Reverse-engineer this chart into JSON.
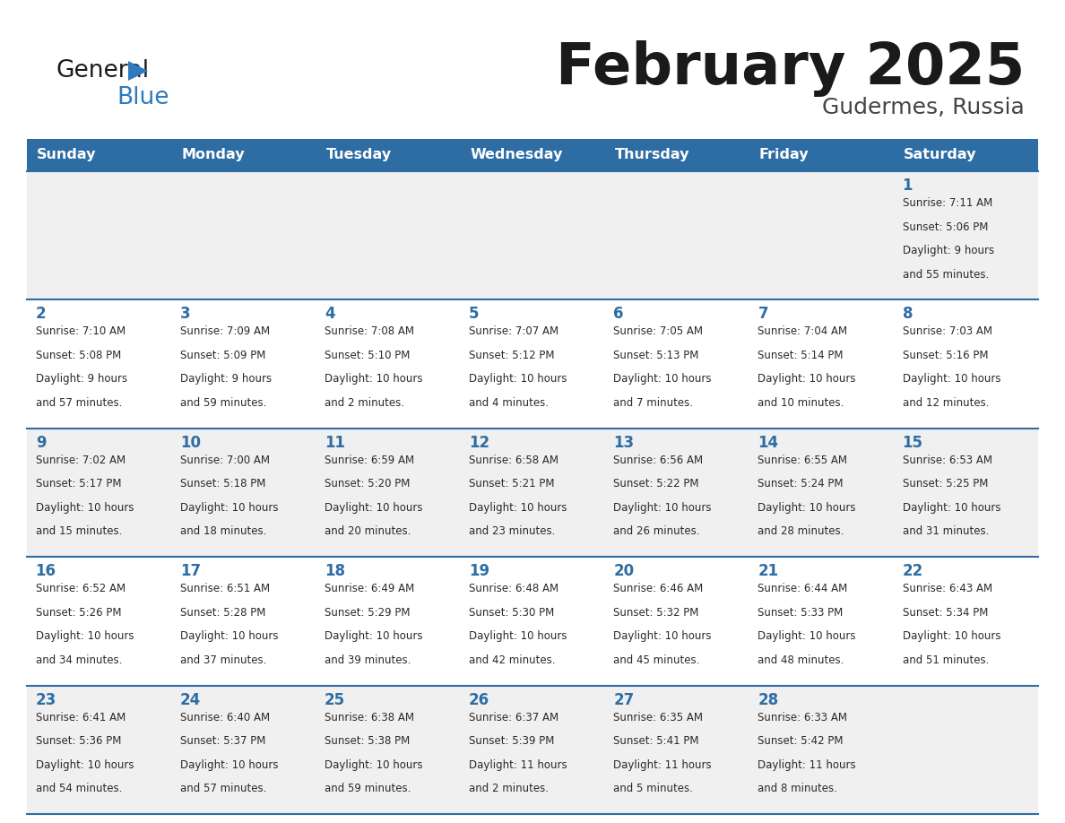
{
  "title": "February 2025",
  "subtitle": "Gudermes, Russia",
  "days_of_week": [
    "Sunday",
    "Monday",
    "Tuesday",
    "Wednesday",
    "Thursday",
    "Friday",
    "Saturday"
  ],
  "header_bg": "#2E6DA4",
  "header_text": "#FFFFFF",
  "cell_bg_odd": "#F0F0F0",
  "cell_bg_even": "#FFFFFF",
  "border_color": "#2E6DA4",
  "day_num_color": "#2E6DA4",
  "text_color": "#333333",
  "calendar": [
    [
      null,
      null,
      null,
      null,
      null,
      null,
      {
        "day": 1,
        "sunrise": "7:11 AM",
        "sunset": "5:06 PM",
        "daylight_line1": "Daylight: 9 hours",
        "daylight_line2": "and 55 minutes."
      }
    ],
    [
      {
        "day": 2,
        "sunrise": "7:10 AM",
        "sunset": "5:08 PM",
        "daylight_line1": "Daylight: 9 hours",
        "daylight_line2": "and 57 minutes."
      },
      {
        "day": 3,
        "sunrise": "7:09 AM",
        "sunset": "5:09 PM",
        "daylight_line1": "Daylight: 9 hours",
        "daylight_line2": "and 59 minutes."
      },
      {
        "day": 4,
        "sunrise": "7:08 AM",
        "sunset": "5:10 PM",
        "daylight_line1": "Daylight: 10 hours",
        "daylight_line2": "and 2 minutes."
      },
      {
        "day": 5,
        "sunrise": "7:07 AM",
        "sunset": "5:12 PM",
        "daylight_line1": "Daylight: 10 hours",
        "daylight_line2": "and 4 minutes."
      },
      {
        "day": 6,
        "sunrise": "7:05 AM",
        "sunset": "5:13 PM",
        "daylight_line1": "Daylight: 10 hours",
        "daylight_line2": "and 7 minutes."
      },
      {
        "day": 7,
        "sunrise": "7:04 AM",
        "sunset": "5:14 PM",
        "daylight_line1": "Daylight: 10 hours",
        "daylight_line2": "and 10 minutes."
      },
      {
        "day": 8,
        "sunrise": "7:03 AM",
        "sunset": "5:16 PM",
        "daylight_line1": "Daylight: 10 hours",
        "daylight_line2": "and 12 minutes."
      }
    ],
    [
      {
        "day": 9,
        "sunrise": "7:02 AM",
        "sunset": "5:17 PM",
        "daylight_line1": "Daylight: 10 hours",
        "daylight_line2": "and 15 minutes."
      },
      {
        "day": 10,
        "sunrise": "7:00 AM",
        "sunset": "5:18 PM",
        "daylight_line1": "Daylight: 10 hours",
        "daylight_line2": "and 18 minutes."
      },
      {
        "day": 11,
        "sunrise": "6:59 AM",
        "sunset": "5:20 PM",
        "daylight_line1": "Daylight: 10 hours",
        "daylight_line2": "and 20 minutes."
      },
      {
        "day": 12,
        "sunrise": "6:58 AM",
        "sunset": "5:21 PM",
        "daylight_line1": "Daylight: 10 hours",
        "daylight_line2": "and 23 minutes."
      },
      {
        "day": 13,
        "sunrise": "6:56 AM",
        "sunset": "5:22 PM",
        "daylight_line1": "Daylight: 10 hours",
        "daylight_line2": "and 26 minutes."
      },
      {
        "day": 14,
        "sunrise": "6:55 AM",
        "sunset": "5:24 PM",
        "daylight_line1": "Daylight: 10 hours",
        "daylight_line2": "and 28 minutes."
      },
      {
        "day": 15,
        "sunrise": "6:53 AM",
        "sunset": "5:25 PM",
        "daylight_line1": "Daylight: 10 hours",
        "daylight_line2": "and 31 minutes."
      }
    ],
    [
      {
        "day": 16,
        "sunrise": "6:52 AM",
        "sunset": "5:26 PM",
        "daylight_line1": "Daylight: 10 hours",
        "daylight_line2": "and 34 minutes."
      },
      {
        "day": 17,
        "sunrise": "6:51 AM",
        "sunset": "5:28 PM",
        "daylight_line1": "Daylight: 10 hours",
        "daylight_line2": "and 37 minutes."
      },
      {
        "day": 18,
        "sunrise": "6:49 AM",
        "sunset": "5:29 PM",
        "daylight_line1": "Daylight: 10 hours",
        "daylight_line2": "and 39 minutes."
      },
      {
        "day": 19,
        "sunrise": "6:48 AM",
        "sunset": "5:30 PM",
        "daylight_line1": "Daylight: 10 hours",
        "daylight_line2": "and 42 minutes."
      },
      {
        "day": 20,
        "sunrise": "6:46 AM",
        "sunset": "5:32 PM",
        "daylight_line1": "Daylight: 10 hours",
        "daylight_line2": "and 45 minutes."
      },
      {
        "day": 21,
        "sunrise": "6:44 AM",
        "sunset": "5:33 PM",
        "daylight_line1": "Daylight: 10 hours",
        "daylight_line2": "and 48 minutes."
      },
      {
        "day": 22,
        "sunrise": "6:43 AM",
        "sunset": "5:34 PM",
        "daylight_line1": "Daylight: 10 hours",
        "daylight_line2": "and 51 minutes."
      }
    ],
    [
      {
        "day": 23,
        "sunrise": "6:41 AM",
        "sunset": "5:36 PM",
        "daylight_line1": "Daylight: 10 hours",
        "daylight_line2": "and 54 minutes."
      },
      {
        "day": 24,
        "sunrise": "6:40 AM",
        "sunset": "5:37 PM",
        "daylight_line1": "Daylight: 10 hours",
        "daylight_line2": "and 57 minutes."
      },
      {
        "day": 25,
        "sunrise": "6:38 AM",
        "sunset": "5:38 PM",
        "daylight_line1": "Daylight: 10 hours",
        "daylight_line2": "and 59 minutes."
      },
      {
        "day": 26,
        "sunrise": "6:37 AM",
        "sunset": "5:39 PM",
        "daylight_line1": "Daylight: 11 hours",
        "daylight_line2": "and 2 minutes."
      },
      {
        "day": 27,
        "sunrise": "6:35 AM",
        "sunset": "5:41 PM",
        "daylight_line1": "Daylight: 11 hours",
        "daylight_line2": "and 5 minutes."
      },
      {
        "day": 28,
        "sunrise": "6:33 AM",
        "sunset": "5:42 PM",
        "daylight_line1": "Daylight: 11 hours",
        "daylight_line2": "and 8 minutes."
      },
      null
    ]
  ]
}
